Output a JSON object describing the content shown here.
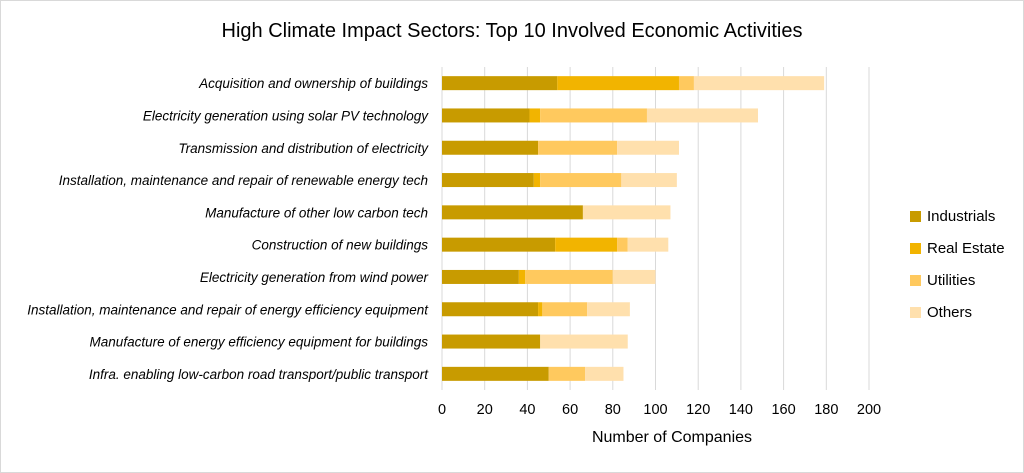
{
  "chart_data": {
    "type": "bar",
    "orientation": "horizontal",
    "stacked": true,
    "title": "High Climate Impact Sectors: Top 10 Involved Economic Activities",
    "xlabel": "Number of Companies",
    "ylabel": "",
    "xlim": [
      0,
      200
    ],
    "xticks": [
      "0",
      "20",
      "40",
      "60",
      "80",
      "100",
      "120",
      "140",
      "160",
      "180",
      "200"
    ],
    "grid": "vertical",
    "legend_position": "right",
    "categories": [
      "Acquisition and ownership of buildings",
      "Electricity generation using solar PV technology",
      "Transmission and distribution of electricity",
      "Installation, maintenance and repair of renewable energy tech",
      "Manufacture of other low carbon tech",
      "Construction of new buildings",
      "Electricity generation from wind power",
      "Installation, maintenance and repair of energy efficiency equipment",
      "Manufacture of energy efficiency equipment for buildings",
      "Infra. enabling low-carbon road transport/public transport"
    ],
    "series": [
      {
        "name": "Industrials",
        "color": "#c89b00",
        "values": [
          54,
          41,
          45,
          43,
          66,
          53,
          36,
          45,
          46,
          50
        ]
      },
      {
        "name": "Real Estate",
        "color": "#f2b400",
        "values": [
          57,
          5,
          0,
          3,
          0,
          29,
          3,
          2,
          0,
          0
        ]
      },
      {
        "name": "Utilities",
        "color": "#ffc95e",
        "values": [
          7,
          50,
          37,
          38,
          0,
          5,
          41,
          21,
          0,
          17
        ]
      },
      {
        "name": "Others",
        "color": "#ffe0ad",
        "values": [
          61,
          52,
          29,
          26,
          41,
          19,
          20,
          20,
          41,
          18
        ]
      }
    ]
  }
}
